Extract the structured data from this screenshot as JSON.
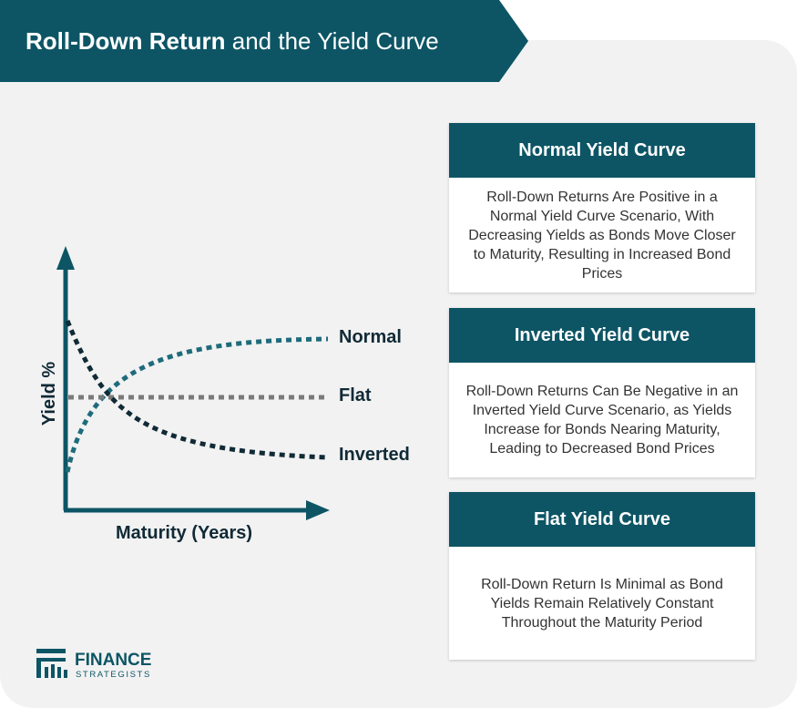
{
  "header": {
    "title_bold": "Roll-Down Return",
    "title_rest": " and the Yield Curve"
  },
  "chart_data": {
    "type": "line",
    "xlabel": "Maturity (Years)",
    "ylabel": "Yield %",
    "grid": false,
    "series": [
      {
        "name": "Normal",
        "color": "#1e6b7b"
      },
      {
        "name": "Flat",
        "color": "#7a7a7a"
      },
      {
        "name": "Inverted",
        "color": "#102a36"
      }
    ]
  },
  "cards": [
    {
      "title": "Normal Yield Curve",
      "text": "Roll-Down Returns Are Positive in a Normal Yield Curve Scenario, With Decreasing Yields as Bonds Move Closer to Maturity, Resulting in Increased Bond Prices"
    },
    {
      "title": "Inverted Yield Curve",
      "text": "Roll-Down Returns Can Be Negative in an Inverted Yield Curve Scenario, as Yields Increase for Bonds Nearing Maturity, Leading to Decreased Bond Prices"
    },
    {
      "title": "Flat Yield Curve",
      "text": "Roll-Down Return Is Minimal as Bond Yields Remain Relatively Constant Throughout the Maturity Period"
    }
  ],
  "brand": {
    "line1": "FINANCE",
    "line2": "STRATEGISTS",
    "primary_color": "#0d5565"
  }
}
